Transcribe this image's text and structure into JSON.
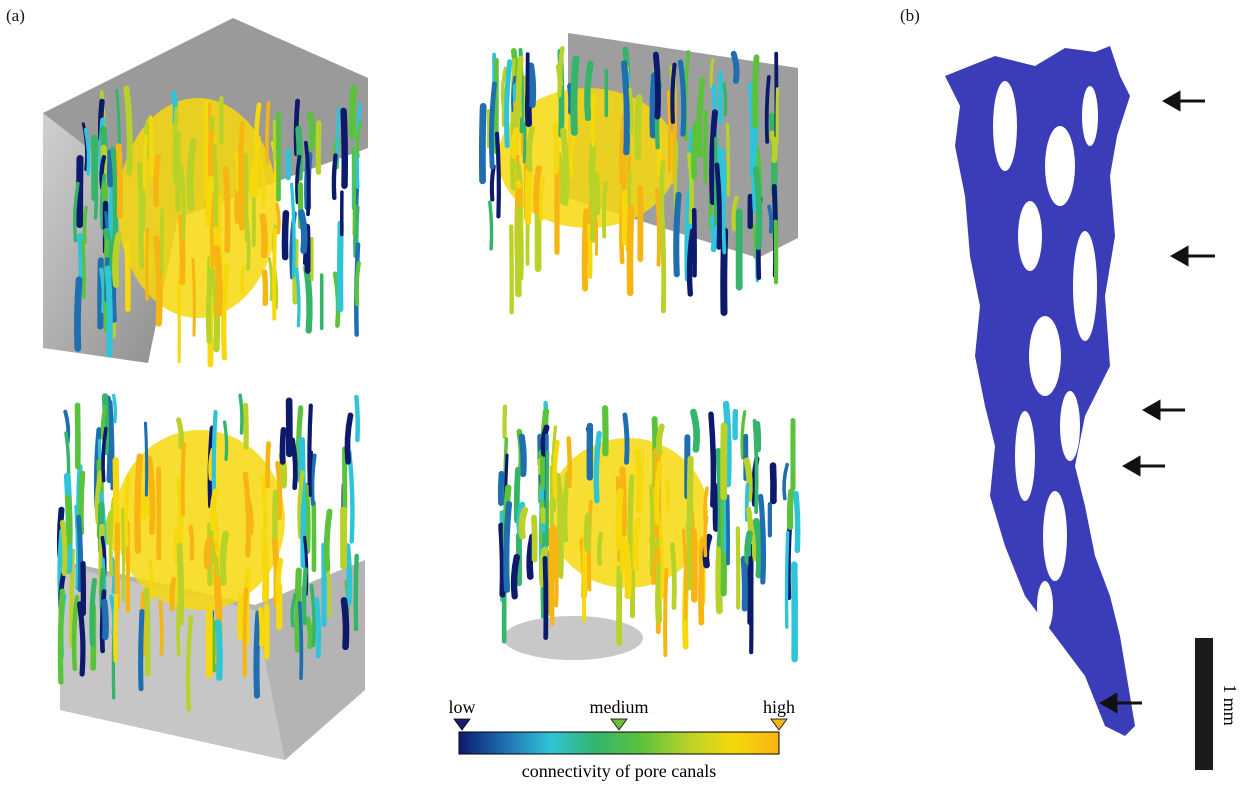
{
  "panels": {
    "a": "(a)",
    "b": "(b)"
  },
  "colorbar": {
    "low": "low",
    "medium": "medium",
    "high": "high",
    "caption": "connectivity of pore canals",
    "colors": [
      "#0d1a6b",
      "#1f6fb0",
      "#2fc4d8",
      "#35b46a",
      "#5bc23c",
      "#b8d22a",
      "#f6d80c",
      "#f7b513"
    ],
    "marker_low_color": "#1a1d6a",
    "marker_medium_color": "#6bbb3c",
    "marker_high_color": "#f0b419"
  },
  "scalebar": {
    "label": "1 mm",
    "color": "#1a1a1a"
  },
  "canal_color": "#3b3db8",
  "arrow_count": 5,
  "volume_count": 4
}
